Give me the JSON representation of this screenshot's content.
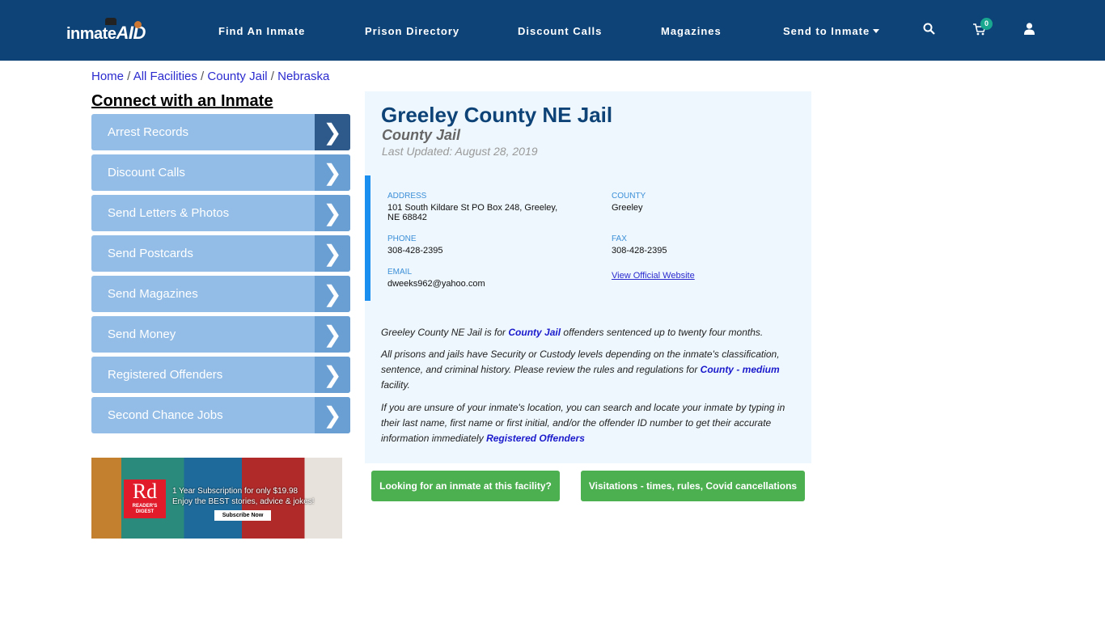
{
  "brand": {
    "logo_text": "inmate",
    "logo_accent": "AID"
  },
  "nav": {
    "items": [
      "Find An Inmate",
      "Prison Directory",
      "Discount Calls",
      "Magazines",
      "Send to Inmate"
    ],
    "cart_count": "0"
  },
  "breadcrumb": [
    "Home",
    "All Facilities",
    "County Jail",
    "Nebraska"
  ],
  "sidebar": {
    "heading": "Connect with an Inmate",
    "items": [
      "Arrest Records",
      "Discount Calls",
      "Send Letters & Photos",
      "Send Postcards",
      "Send Magazines",
      "Send Money",
      "Registered Offenders",
      "Second Chance Jobs"
    ]
  },
  "ad": {
    "logo": "Rd",
    "logo_sub": "READER'S DIGEST",
    "line1": "1 Year Subscription for only $19.98",
    "line2": "Enjoy the BEST stories, advice & jokes!",
    "button": "Subscribe Now"
  },
  "facility": {
    "title": "Greeley County NE Jail",
    "type": "County Jail",
    "updated": "Last Updated: August 28, 2019",
    "address_label": "ADDRESS",
    "address": "101 South Kildare St PO Box 248, Greeley, NE 68842",
    "county_label": "COUNTY",
    "county": "Greeley",
    "phone_label": "PHONE",
    "phone": "308-428-2395",
    "fax_label": "FAX",
    "fax": "308-428-2395",
    "email_label": "EMAIL",
    "email": "dweeks962@yahoo.com",
    "website": "View Official Website"
  },
  "description": {
    "p1_a": "Greeley County NE Jail is for ",
    "p1_link": "County Jail",
    "p1_b": " offenders sentenced up to twenty four months.",
    "p2_a": "All prisons and jails have Security or Custody levels depending on the inmate's classification, sentence, and criminal history. Please review the rules and regulations for ",
    "p2_link": "County - medium",
    "p2_b": " facility.",
    "p3_a": "If you are unsure of your inmate's location, you can search and locate your inmate by typing in their last name, first name or first initial, and/or the offender ID number to get their accurate information immediately ",
    "p3_link": "Registered Offenders"
  },
  "buttons": {
    "find": "Looking for an inmate at this facility?",
    "visit": "Visitations - times, rules, Covid cancellations"
  }
}
